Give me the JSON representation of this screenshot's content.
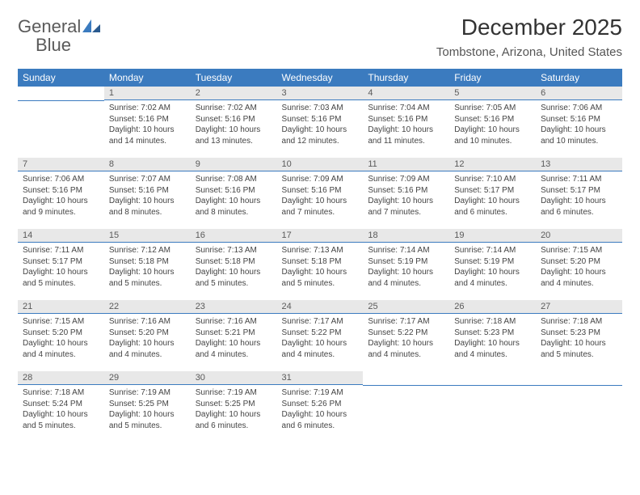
{
  "brand": {
    "general": "General",
    "blue": "Blue"
  },
  "title": "December 2025",
  "location": "Tombstone, Arizona, United States",
  "colors": {
    "accent": "#3b7bbf",
    "header_bg": "#3b7bbf",
    "header_text": "#ffffff",
    "daynum_bg": "#e8e8e8",
    "text": "#444444",
    "title_text": "#333333"
  },
  "weekdays": [
    "Sunday",
    "Monday",
    "Tuesday",
    "Wednesday",
    "Thursday",
    "Friday",
    "Saturday"
  ],
  "grid": [
    [
      null,
      {
        "n": "1",
        "sr": "7:02 AM",
        "ss": "5:16 PM",
        "dl": "10 hours and 14 minutes."
      },
      {
        "n": "2",
        "sr": "7:02 AM",
        "ss": "5:16 PM",
        "dl": "10 hours and 13 minutes."
      },
      {
        "n": "3",
        "sr": "7:03 AM",
        "ss": "5:16 PM",
        "dl": "10 hours and 12 minutes."
      },
      {
        "n": "4",
        "sr": "7:04 AM",
        "ss": "5:16 PM",
        "dl": "10 hours and 11 minutes."
      },
      {
        "n": "5",
        "sr": "7:05 AM",
        "ss": "5:16 PM",
        "dl": "10 hours and 10 minutes."
      },
      {
        "n": "6",
        "sr": "7:06 AM",
        "ss": "5:16 PM",
        "dl": "10 hours and 10 minutes."
      }
    ],
    [
      {
        "n": "7",
        "sr": "7:06 AM",
        "ss": "5:16 PM",
        "dl": "10 hours and 9 minutes."
      },
      {
        "n": "8",
        "sr": "7:07 AM",
        "ss": "5:16 PM",
        "dl": "10 hours and 8 minutes."
      },
      {
        "n": "9",
        "sr": "7:08 AM",
        "ss": "5:16 PM",
        "dl": "10 hours and 8 minutes."
      },
      {
        "n": "10",
        "sr": "7:09 AM",
        "ss": "5:16 PM",
        "dl": "10 hours and 7 minutes."
      },
      {
        "n": "11",
        "sr": "7:09 AM",
        "ss": "5:16 PM",
        "dl": "10 hours and 7 minutes."
      },
      {
        "n": "12",
        "sr": "7:10 AM",
        "ss": "5:17 PM",
        "dl": "10 hours and 6 minutes."
      },
      {
        "n": "13",
        "sr": "7:11 AM",
        "ss": "5:17 PM",
        "dl": "10 hours and 6 minutes."
      }
    ],
    [
      {
        "n": "14",
        "sr": "7:11 AM",
        "ss": "5:17 PM",
        "dl": "10 hours and 5 minutes."
      },
      {
        "n": "15",
        "sr": "7:12 AM",
        "ss": "5:18 PM",
        "dl": "10 hours and 5 minutes."
      },
      {
        "n": "16",
        "sr": "7:13 AM",
        "ss": "5:18 PM",
        "dl": "10 hours and 5 minutes."
      },
      {
        "n": "17",
        "sr": "7:13 AM",
        "ss": "5:18 PM",
        "dl": "10 hours and 5 minutes."
      },
      {
        "n": "18",
        "sr": "7:14 AM",
        "ss": "5:19 PM",
        "dl": "10 hours and 4 minutes."
      },
      {
        "n": "19",
        "sr": "7:14 AM",
        "ss": "5:19 PM",
        "dl": "10 hours and 4 minutes."
      },
      {
        "n": "20",
        "sr": "7:15 AM",
        "ss": "5:20 PM",
        "dl": "10 hours and 4 minutes."
      }
    ],
    [
      {
        "n": "21",
        "sr": "7:15 AM",
        "ss": "5:20 PM",
        "dl": "10 hours and 4 minutes."
      },
      {
        "n": "22",
        "sr": "7:16 AM",
        "ss": "5:20 PM",
        "dl": "10 hours and 4 minutes."
      },
      {
        "n": "23",
        "sr": "7:16 AM",
        "ss": "5:21 PM",
        "dl": "10 hours and 4 minutes."
      },
      {
        "n": "24",
        "sr": "7:17 AM",
        "ss": "5:22 PM",
        "dl": "10 hours and 4 minutes."
      },
      {
        "n": "25",
        "sr": "7:17 AM",
        "ss": "5:22 PM",
        "dl": "10 hours and 4 minutes."
      },
      {
        "n": "26",
        "sr": "7:18 AM",
        "ss": "5:23 PM",
        "dl": "10 hours and 4 minutes."
      },
      {
        "n": "27",
        "sr": "7:18 AM",
        "ss": "5:23 PM",
        "dl": "10 hours and 5 minutes."
      }
    ],
    [
      {
        "n": "28",
        "sr": "7:18 AM",
        "ss": "5:24 PM",
        "dl": "10 hours and 5 minutes."
      },
      {
        "n": "29",
        "sr": "7:19 AM",
        "ss": "5:25 PM",
        "dl": "10 hours and 5 minutes."
      },
      {
        "n": "30",
        "sr": "7:19 AM",
        "ss": "5:25 PM",
        "dl": "10 hours and 6 minutes."
      },
      {
        "n": "31",
        "sr": "7:19 AM",
        "ss": "5:26 PM",
        "dl": "10 hours and 6 minutes."
      },
      null,
      null,
      null
    ]
  ],
  "labels": {
    "sunrise": "Sunrise:",
    "sunset": "Sunset:",
    "daylight": "Daylight:"
  }
}
